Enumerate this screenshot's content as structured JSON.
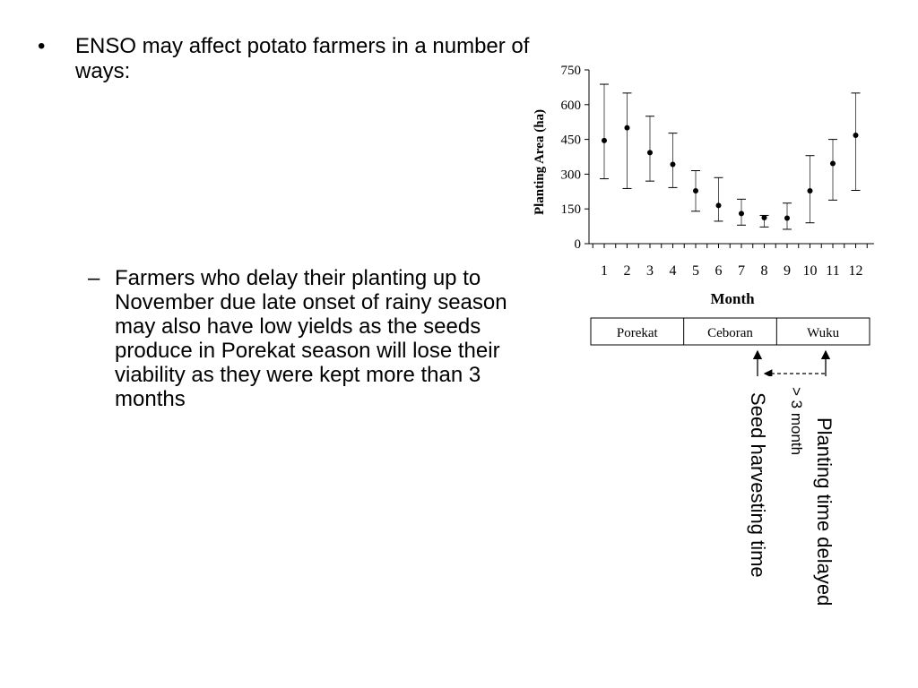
{
  "slide": {
    "bullet1": {
      "marker": "•",
      "text": "ENSO may affect potato farmers in a number of ways:"
    },
    "bullet2": {
      "marker": "–",
      "text": "Farmers who delay their planting up to November due late onset of rainy season may also have low yields as the seeds produce in Porekat season will lose their viability as they were kept more than 3 months"
    }
  },
  "chart_data": {
    "type": "scatter",
    "xlabel": "Month",
    "ylabel": "Planting Area (ha)",
    "x": [
      1,
      2,
      3,
      4,
      5,
      6,
      7,
      8,
      9,
      10,
      11,
      12
    ],
    "y": [
      445,
      500,
      393,
      342,
      228,
      165,
      130,
      112,
      110,
      228,
      346,
      468
    ],
    "error_low": [
      280,
      238,
      270,
      242,
      140,
      97,
      80,
      72,
      62,
      90,
      188,
      230
    ],
    "error_high": [
      688,
      650,
      550,
      477,
      315,
      285,
      192,
      122,
      175,
      380,
      450,
      650
    ],
    "ylim": [
      0,
      750
    ],
    "yticks": [
      0,
      150,
      300,
      450,
      600,
      750
    ],
    "grid": false,
    "seasons": [
      "Porekat",
      "Ceboran",
      "Wuku"
    ],
    "annotations": [
      "Planting time delayed",
      "> 3 month",
      "Seed harvesting time"
    ]
  }
}
